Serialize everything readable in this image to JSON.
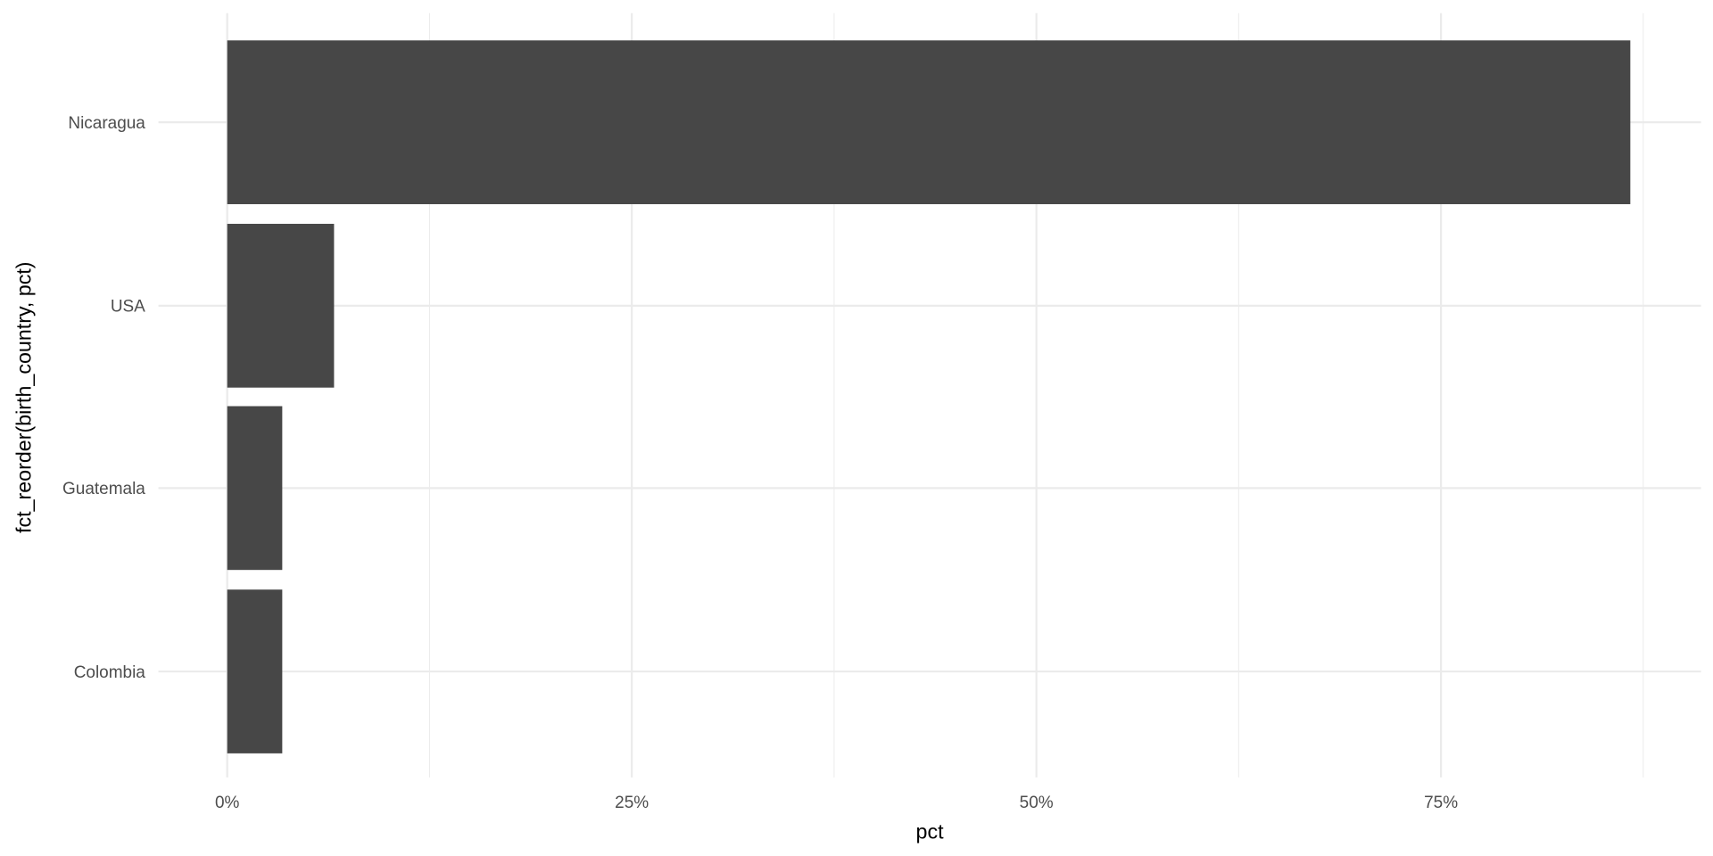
{
  "chart_data": {
    "type": "bar",
    "orientation": "horizontal",
    "categories": [
      "Nicaragua",
      "USA",
      "Guatemala",
      "Colombia"
    ],
    "values": [
      86.7,
      6.6,
      3.4,
      3.4
    ],
    "xlabel": "pct",
    "ylabel": "fct_reorder(birth_country, pct)",
    "xlim": [
      -4.3,
      91
    ],
    "x_ticks": [
      0,
      25,
      50,
      75
    ],
    "x_tick_labels": [
      "0%",
      "25%",
      "50%",
      "75%"
    ],
    "grid": true,
    "bar_color": "#474747",
    "grid_color": "#ebebeb"
  }
}
